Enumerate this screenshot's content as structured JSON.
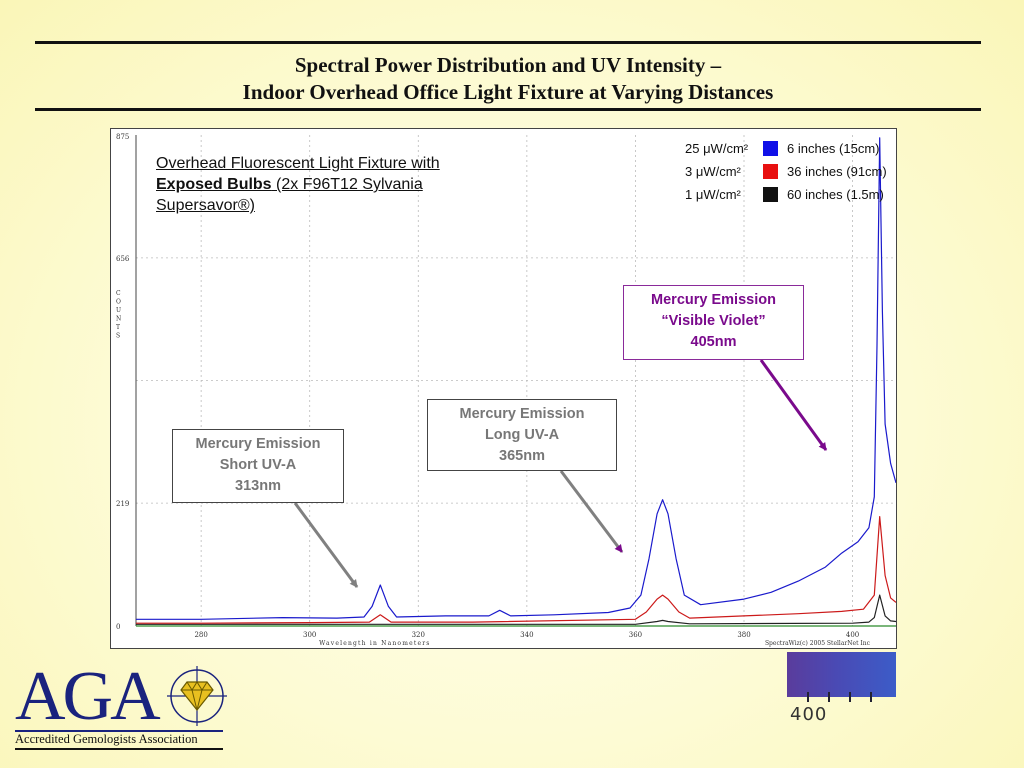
{
  "title": {
    "line1": "Spectral Power Distribution and UV Intensity –",
    "line2": "Indoor Overhead Office Light Fixture at Varying Distances"
  },
  "subject": {
    "line1": "Overhead Fluorescent Light Fixture with",
    "bold": "Exposed Bulbs",
    "rest": " (2x F96T12 Sylvania",
    "line3": "Supersavor®)"
  },
  "legend": [
    {
      "intensity": "25 μW/cm²",
      "label": "6 inches (15cm)",
      "color": "#1010e8"
    },
    {
      "intensity": "3 μW/cm²",
      "label": "36 inches (91cm)",
      "color": "#e81010"
    },
    {
      "intensity": "1 μW/cm²",
      "label": "60 inches (1.5m)",
      "color": "#111111"
    }
  ],
  "callouts": {
    "short_uva": {
      "line1": "Mercury Emission",
      "line2": "Short UV-A",
      "line3": "313nm"
    },
    "long_uva": {
      "line1": "Mercury Emission",
      "line2": "Long UV-A",
      "line3": "365nm"
    },
    "visible_violet": {
      "line1": "Mercury Emission",
      "line2": "“Visible Violet”",
      "line3": "405nm"
    }
  },
  "chart_data": {
    "type": "line",
    "xlabel": "Wavelength in Nanometers",
    "ylabel": "COUNTS",
    "xlim": [
      268,
      408
    ],
    "ylim": [
      0,
      875
    ],
    "x_ticks": [
      280,
      300,
      320,
      340,
      360,
      380,
      400
    ],
    "y_ticks": [
      0,
      219,
      656,
      875
    ],
    "grid": true,
    "credit": "SpectraWiz(c) 2005 StellarNet Inc",
    "series": [
      {
        "name": "6 inches (15cm)",
        "color": "#1a1acc",
        "x": [
          268,
          280,
          295,
          305,
          310,
          311.5,
          313,
          314.5,
          316,
          325,
          333,
          335,
          337,
          345,
          355,
          359,
          361,
          362.5,
          364,
          365,
          366,
          367.5,
          369,
          372,
          380,
          385,
          390,
          395,
          398,
          401,
          403,
          404,
          404.5,
          405,
          405.5,
          406,
          407,
          408
        ],
        "y": [
          12,
          12,
          15,
          14,
          16,
          35,
          73,
          35,
          16,
          18,
          18,
          28,
          18,
          20,
          24,
          32,
          55,
          120,
          200,
          225,
          200,
          120,
          55,
          38,
          48,
          60,
          80,
          105,
          130,
          150,
          175,
          230,
          500,
          870,
          560,
          360,
          290,
          255
        ]
      },
      {
        "name": "36 inches (91cm)",
        "color": "#cc1a1a",
        "x": [
          268,
          280,
          300,
          311,
          313,
          315,
          330,
          360,
          362,
          364,
          365,
          366,
          368,
          370,
          380,
          390,
          398,
          402,
          404,
          405,
          406,
          407,
          408
        ],
        "y": [
          5,
          5,
          6,
          7,
          20,
          7,
          7,
          12,
          25,
          48,
          55,
          48,
          25,
          14,
          18,
          22,
          26,
          30,
          55,
          195,
          90,
          50,
          42
        ]
      },
      {
        "name": "60 inches (1.5m)",
        "color": "#222222",
        "x": [
          268,
          300,
          360,
          364,
          365,
          366,
          370,
          400,
          403,
          404,
          405,
          406,
          407,
          408
        ],
        "y": [
          3,
          3,
          3,
          8,
          10,
          8,
          4,
          5,
          7,
          15,
          55,
          18,
          9,
          8
        ]
      }
    ]
  },
  "strip": {
    "label": "400"
  },
  "logo": {
    "letters": "AGA",
    "caption": "Accredited Gemologists Association"
  }
}
